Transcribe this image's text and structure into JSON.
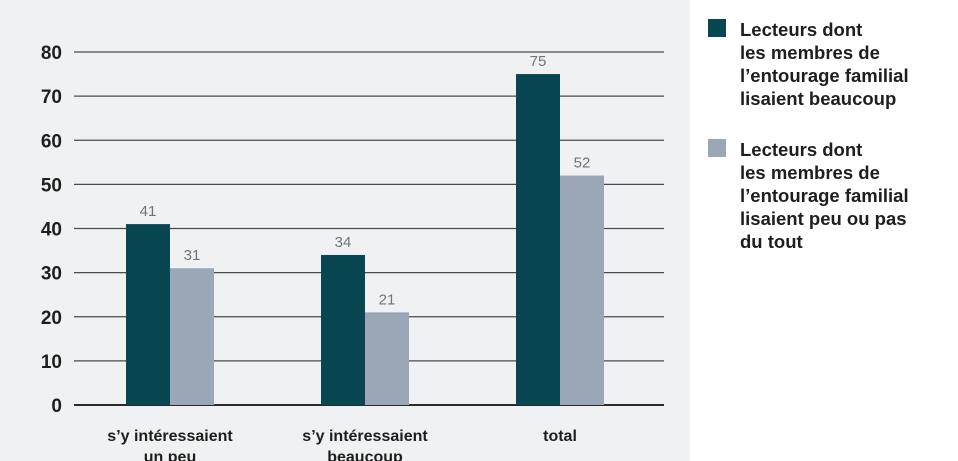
{
  "chart_data": {
    "type": "bar",
    "categories": [
      "s’y intéressaient\nun peu",
      "s’y intéressaient\nbeaucoup",
      "total"
    ],
    "series": [
      {
        "name": "Lecteurs dont\nles membres de\nl’entourage familial\nlisaient beaucoup",
        "values": [
          41,
          34,
          75
        ],
        "color": "#084752"
      },
      {
        "name": "Lecteurs dont\nles membres de\nl’entourage familial\nlisaient peu ou pas\ndu tout",
        "values": [
          31,
          21,
          52
        ],
        "color": "#9ba7b7"
      }
    ],
    "ylim": [
      0,
      80
    ],
    "yticks": [
      0,
      10,
      20,
      30,
      40,
      50,
      60,
      70,
      80
    ],
    "grid": true,
    "legend": "right"
  }
}
